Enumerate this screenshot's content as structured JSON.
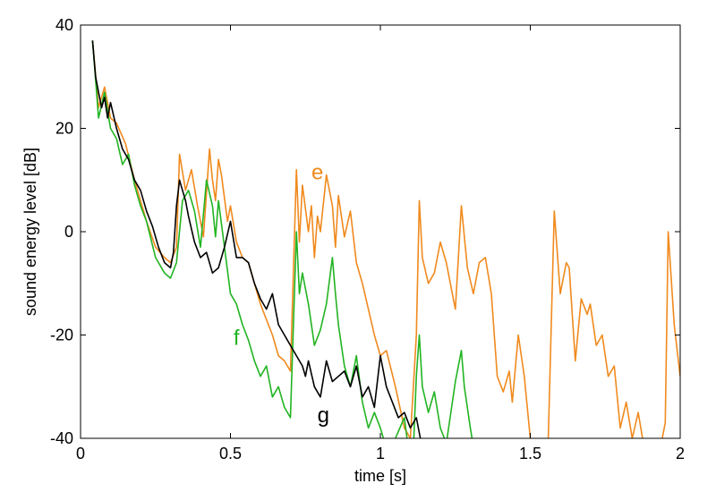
{
  "chart_data": {
    "type": "line",
    "title": "",
    "xlabel": "time  [s]",
    "ylabel": "sound energy level  [dB]",
    "xlim": [
      0,
      2
    ],
    "ylim": [
      -40,
      40
    ],
    "xticks": [
      0,
      0.5,
      1,
      1.5,
      2
    ],
    "xtick_labels": [
      "0",
      "0.5",
      "1",
      "1.5",
      "2"
    ],
    "yticks": [
      -40,
      -20,
      0,
      20,
      40
    ],
    "ytick_labels": [
      "-40",
      "-20",
      "0",
      "20",
      "40"
    ],
    "grid": false,
    "legend": "none",
    "series": [
      {
        "name": "e",
        "color": "#F08A1E",
        "x": [
          0.04,
          0.06,
          0.08,
          0.1,
          0.12,
          0.15,
          0.18,
          0.2,
          0.22,
          0.25,
          0.28,
          0.3,
          0.32,
          0.33,
          0.35,
          0.37,
          0.39,
          0.41,
          0.43,
          0.44,
          0.45,
          0.46,
          0.47,
          0.49,
          0.5,
          0.52,
          0.54,
          0.56,
          0.58,
          0.6,
          0.62,
          0.64,
          0.66,
          0.68,
          0.7,
          0.72,
          0.73,
          0.74,
          0.76,
          0.77,
          0.78,
          0.79,
          0.8,
          0.82,
          0.84,
          0.85,
          0.86,
          0.88,
          0.9,
          0.92,
          0.94,
          0.96,
          0.98,
          1.0,
          1.02,
          1.05,
          1.08,
          1.1,
          1.12,
          1.13,
          1.14,
          1.16,
          1.18,
          1.2,
          1.22,
          1.24,
          1.25,
          1.27,
          1.29,
          1.31,
          1.33,
          1.35,
          1.37,
          1.39,
          1.41,
          1.43,
          1.44,
          1.46,
          1.48,
          1.5,
          1.53,
          1.55,
          1.56,
          1.58,
          1.6,
          1.62,
          1.63,
          1.65,
          1.67,
          1.69,
          1.7,
          1.72,
          1.74,
          1.76,
          1.78,
          1.8,
          1.82,
          1.84,
          1.86,
          1.88,
          1.9,
          1.92,
          1.94,
          1.95,
          1.96,
          1.98,
          2.0
        ],
        "y": [
          37,
          24,
          28,
          22,
          21,
          17,
          10,
          6,
          2,
          -3,
          -5,
          -6,
          -3,
          15,
          8,
          12,
          5,
          -1,
          16,
          10,
          6,
          14,
          11,
          2,
          5,
          -2,
          -5,
          -6,
          -10,
          -14,
          -17,
          -20,
          -24,
          -25,
          -27,
          12,
          -2,
          9,
          0,
          5,
          -5,
          3,
          0,
          11,
          5,
          -3,
          7,
          -1,
          4,
          -6,
          -10,
          -15,
          -20,
          -24,
          -23,
          -30,
          -38,
          -40,
          -20,
          6,
          -5,
          -10,
          -8,
          -2,
          -6,
          -12,
          -15,
          5,
          -7,
          -12,
          -6,
          -5,
          -12,
          -28,
          -31,
          -27,
          -33,
          -20,
          -28,
          -40,
          -48,
          -45,
          -40,
          4,
          -12,
          -6,
          -7,
          -25,
          -13,
          -16,
          -14,
          -22,
          -20,
          -28,
          -26,
          -38,
          -33,
          -40,
          -35,
          -42,
          -46,
          -44,
          -40,
          -37,
          0,
          -18,
          -28
        ]
      },
      {
        "name": "f",
        "color": "#22B422",
        "x": [
          0.04,
          0.06,
          0.08,
          0.1,
          0.12,
          0.14,
          0.16,
          0.18,
          0.2,
          0.22,
          0.25,
          0.28,
          0.3,
          0.32,
          0.34,
          0.36,
          0.38,
          0.4,
          0.42,
          0.44,
          0.45,
          0.46,
          0.48,
          0.5,
          0.52,
          0.54,
          0.56,
          0.58,
          0.6,
          0.62,
          0.64,
          0.66,
          0.68,
          0.7,
          0.72,
          0.73,
          0.74,
          0.76,
          0.78,
          0.8,
          0.82,
          0.84,
          0.85,
          0.86,
          0.88,
          0.9,
          0.92,
          0.94,
          0.96,
          0.98,
          1.0,
          1.02,
          1.05,
          1.08,
          1.1,
          1.11,
          1.12,
          1.13,
          1.14,
          1.16,
          1.18,
          1.2,
          1.22,
          1.25,
          1.27,
          1.28,
          1.3,
          1.32
        ],
        "y": [
          37,
          22,
          27,
          20,
          18,
          13,
          15,
          9,
          5,
          2,
          -5,
          -8,
          -9,
          -6,
          6,
          8,
          4,
          -3,
          10,
          5,
          -1,
          6,
          -3,
          -12,
          -14,
          -18,
          -21,
          -25,
          -28,
          -26,
          -32,
          -30,
          -34,
          -36,
          0,
          -12,
          -8,
          -14,
          -22,
          -19,
          -14,
          -5,
          -12,
          -18,
          -26,
          -30,
          -24,
          -33,
          -38,
          -35,
          -38,
          -42,
          -40,
          -36,
          -45,
          -42,
          -28,
          -20,
          -30,
          -35,
          -31,
          -38,
          -41,
          -29,
          -23,
          -30,
          -38,
          -45
        ]
      },
      {
        "name": "g",
        "color": "#000000",
        "x": [
          0.04,
          0.05,
          0.06,
          0.07,
          0.08,
          0.09,
          0.1,
          0.12,
          0.14,
          0.16,
          0.18,
          0.2,
          0.22,
          0.24,
          0.26,
          0.28,
          0.3,
          0.31,
          0.32,
          0.33,
          0.34,
          0.35,
          0.36,
          0.38,
          0.4,
          0.42,
          0.44,
          0.46,
          0.48,
          0.5,
          0.52,
          0.54,
          0.56,
          0.58,
          0.6,
          0.62,
          0.64,
          0.66,
          0.68,
          0.7,
          0.72,
          0.74,
          0.75,
          0.76,
          0.78,
          0.8,
          0.82,
          0.84,
          0.86,
          0.88,
          0.9,
          0.92,
          0.94,
          0.96,
          0.98,
          1.0,
          1.02,
          1.04,
          1.06,
          1.08,
          1.1,
          1.12,
          1.14
        ],
        "y": [
          37,
          30,
          27,
          24,
          26,
          22,
          25,
          20,
          16,
          14,
          10,
          8,
          4,
          1,
          -3,
          -6,
          -7,
          -4,
          5,
          10,
          8,
          6,
          3,
          -2,
          -5,
          -4,
          -8,
          -7,
          -3,
          2,
          -5,
          -5,
          -6,
          -10,
          -13,
          -15,
          -12,
          -18,
          -20,
          -22,
          -24,
          -26,
          -28,
          -25,
          -30,
          -32,
          -25,
          -29,
          -28,
          -27,
          -30,
          -26,
          -32,
          -30,
          -34,
          -24,
          -30,
          -33,
          -36,
          -35,
          -38,
          -36,
          -42
        ]
      }
    ],
    "annotations": [
      {
        "text": "e",
        "x": 0.79,
        "y": 11.5,
        "color": "#F08A1E"
      },
      {
        "text": "f",
        "x": 0.52,
        "y": -20.5,
        "color": "#22B422"
      },
      {
        "text": "g",
        "x": 0.81,
        "y": -35.5,
        "color": "#000000"
      }
    ]
  }
}
